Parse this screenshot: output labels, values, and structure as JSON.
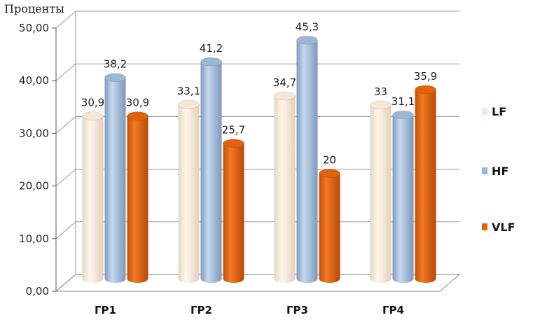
{
  "chart_data": {
    "type": "bar",
    "ylabel": "Проценты",
    "categories": [
      "ГР1",
      "ГР2",
      "ГР3",
      "ГР4"
    ],
    "series": [
      {
        "name": "LF",
        "values": [
          30.9,
          33.1,
          34.7,
          33
        ],
        "labels": [
          "30,9",
          "33,1",
          "34,7",
          "33"
        ],
        "color": "#f6e6d6"
      },
      {
        "name": "HF",
        "values": [
          38.2,
          41.2,
          45.3,
          31.1
        ],
        "labels": [
          "38,2",
          "41,2",
          "45,3",
          "31,1"
        ],
        "color": "#9cb6d6"
      },
      {
        "name": "VLF",
        "values": [
          30.9,
          25.7,
          20,
          35.9
        ],
        "labels": [
          "30,9",
          "25,7",
          "20",
          "35,9"
        ],
        "color": "#e0620d"
      }
    ],
    "y_ticks": [
      "0,00",
      "10,00",
      "20,00",
      "30,00",
      "40,00",
      "50,00"
    ],
    "ylim": [
      0,
      50
    ],
    "grid": true,
    "style": "3d-cylinder",
    "legend_position": "right"
  }
}
